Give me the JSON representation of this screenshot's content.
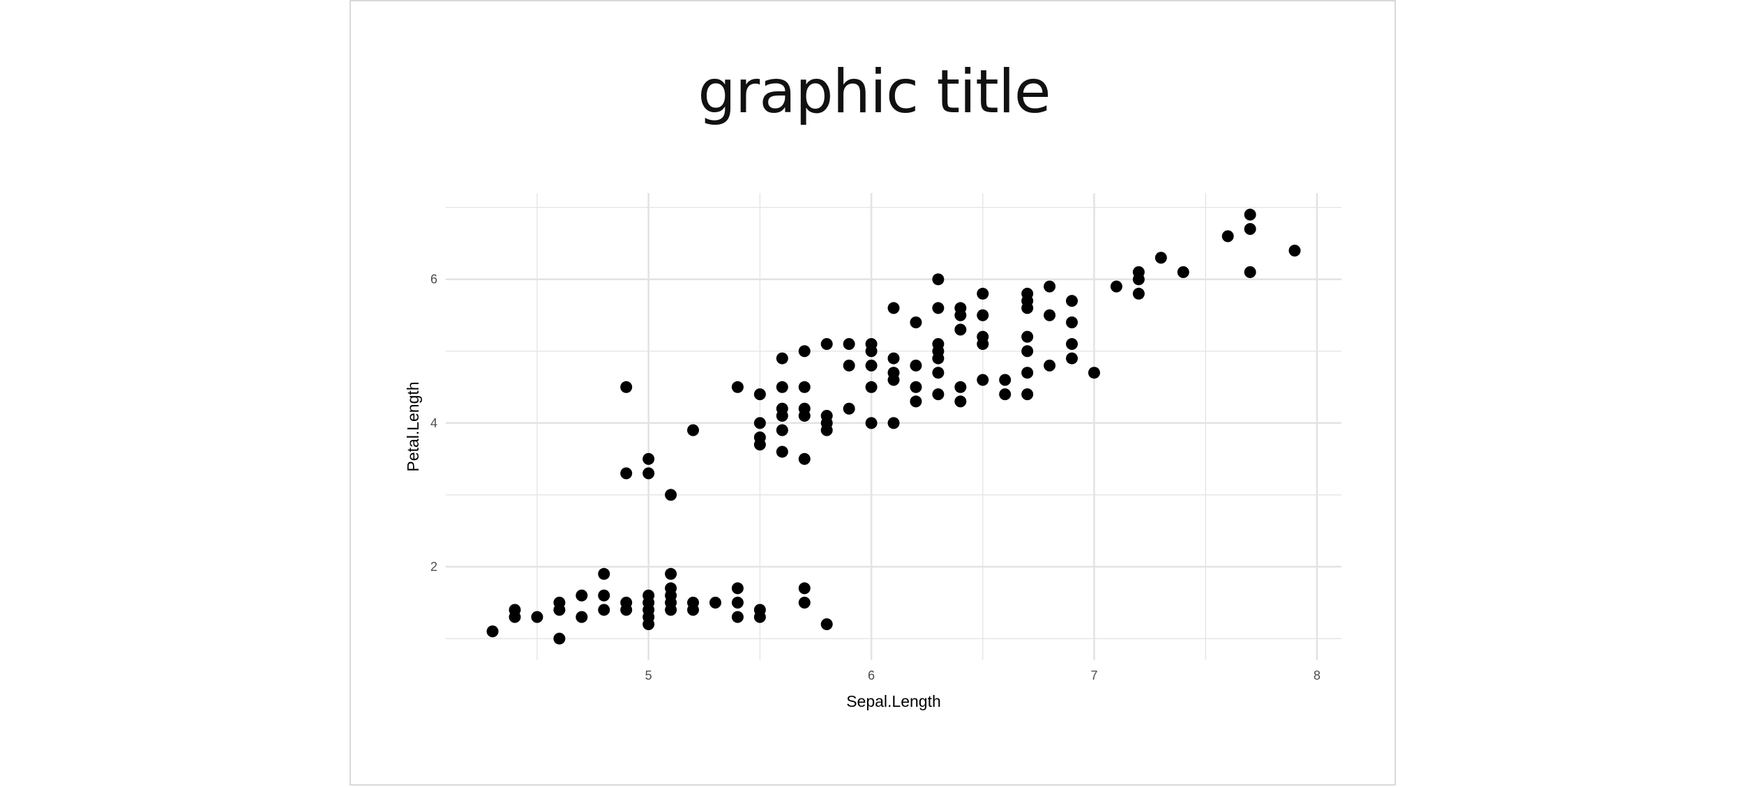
{
  "chart_data": {
    "type": "scatter",
    "title": "graphic title",
    "xlabel": "Sepal.Length",
    "ylabel": "Petal.Length",
    "xlim": [
      4.09,
      8.11
    ],
    "ylim": [
      0.7,
      7.2
    ],
    "x_ticks": [
      5,
      6,
      7,
      8
    ],
    "y_ticks": [
      2,
      4,
      6
    ],
    "x_minor": [
      4.5,
      5.5,
      6.5,
      7.5
    ],
    "y_minor": [
      1,
      3,
      5,
      7
    ],
    "grid": true,
    "legend": "none",
    "point_color": "#000000",
    "points": [
      [
        4.3,
        1.1
      ],
      [
        4.4,
        1.3
      ],
      [
        4.4,
        1.4
      ],
      [
        4.5,
        1.3
      ],
      [
        4.6,
        1.0
      ],
      [
        4.6,
        1.4
      ],
      [
        4.6,
        1.5
      ],
      [
        4.7,
        1.3
      ],
      [
        4.7,
        1.6
      ],
      [
        4.8,
        1.4
      ],
      [
        4.8,
        1.6
      ],
      [
        4.8,
        1.9
      ],
      [
        4.9,
        1.4
      ],
      [
        4.9,
        1.5
      ],
      [
        4.9,
        3.3
      ],
      [
        4.9,
        4.5
      ],
      [
        5.0,
        1.2
      ],
      [
        5.0,
        1.3
      ],
      [
        5.0,
        1.4
      ],
      [
        5.0,
        1.5
      ],
      [
        5.0,
        1.6
      ],
      [
        5.0,
        3.3
      ],
      [
        5.0,
        3.5
      ],
      [
        5.1,
        1.4
      ],
      [
        5.1,
        1.5
      ],
      [
        5.1,
        1.6
      ],
      [
        5.1,
        1.7
      ],
      [
        5.1,
        1.9
      ],
      [
        5.1,
        3.0
      ],
      [
        5.2,
        1.4
      ],
      [
        5.2,
        1.5
      ],
      [
        5.2,
        3.9
      ],
      [
        5.3,
        1.5
      ],
      [
        5.4,
        1.3
      ],
      [
        5.4,
        1.5
      ],
      [
        5.4,
        1.7
      ],
      [
        5.4,
        4.5
      ],
      [
        5.5,
        1.3
      ],
      [
        5.5,
        1.4
      ],
      [
        5.5,
        3.7
      ],
      [
        5.5,
        3.8
      ],
      [
        5.5,
        4.0
      ],
      [
        5.5,
        4.4
      ],
      [
        5.6,
        3.6
      ],
      [
        5.6,
        3.9
      ],
      [
        5.6,
        4.1
      ],
      [
        5.6,
        4.2
      ],
      [
        5.6,
        4.5
      ],
      [
        5.6,
        4.9
      ],
      [
        5.7,
        1.5
      ],
      [
        5.7,
        1.7
      ],
      [
        5.7,
        3.5
      ],
      [
        5.7,
        4.1
      ],
      [
        5.7,
        4.2
      ],
      [
        5.7,
        4.5
      ],
      [
        5.7,
        5.0
      ],
      [
        5.8,
        1.2
      ],
      [
        5.8,
        3.9
      ],
      [
        5.8,
        4.0
      ],
      [
        5.8,
        4.1
      ],
      [
        5.8,
        5.1
      ],
      [
        5.9,
        4.2
      ],
      [
        5.9,
        4.8
      ],
      [
        5.9,
        5.1
      ],
      [
        6.0,
        4.0
      ],
      [
        6.0,
        4.5
      ],
      [
        6.0,
        4.8
      ],
      [
        6.0,
        5.0
      ],
      [
        6.0,
        5.1
      ],
      [
        6.1,
        4.0
      ],
      [
        6.1,
        4.6
      ],
      [
        6.1,
        4.7
      ],
      [
        6.1,
        4.9
      ],
      [
        6.1,
        5.6
      ],
      [
        6.2,
        4.3
      ],
      [
        6.2,
        4.5
      ],
      [
        6.2,
        4.8
      ],
      [
        6.2,
        5.4
      ],
      [
        6.3,
        4.4
      ],
      [
        6.3,
        4.7
      ],
      [
        6.3,
        4.9
      ],
      [
        6.3,
        5.0
      ],
      [
        6.3,
        5.1
      ],
      [
        6.3,
        5.6
      ],
      [
        6.3,
        6.0
      ],
      [
        6.4,
        4.3
      ],
      [
        6.4,
        4.5
      ],
      [
        6.4,
        5.3
      ],
      [
        6.4,
        5.5
      ],
      [
        6.4,
        5.6
      ],
      [
        6.5,
        4.6
      ],
      [
        6.5,
        5.1
      ],
      [
        6.5,
        5.2
      ],
      [
        6.5,
        5.5
      ],
      [
        6.5,
        5.8
      ],
      [
        6.6,
        4.4
      ],
      [
        6.6,
        4.6
      ],
      [
        6.7,
        4.4
      ],
      [
        6.7,
        4.7
      ],
      [
        6.7,
        5.0
      ],
      [
        6.7,
        5.2
      ],
      [
        6.7,
        5.6
      ],
      [
        6.7,
        5.7
      ],
      [
        6.7,
        5.8
      ],
      [
        6.8,
        4.8
      ],
      [
        6.8,
        5.5
      ],
      [
        6.8,
        5.9
      ],
      [
        6.9,
        4.9
      ],
      [
        6.9,
        5.1
      ],
      [
        6.9,
        5.4
      ],
      [
        6.9,
        5.7
      ],
      [
        7.0,
        4.7
      ],
      [
        7.1,
        5.9
      ],
      [
        7.2,
        5.8
      ],
      [
        7.2,
        6.0
      ],
      [
        7.2,
        6.1
      ],
      [
        7.3,
        6.3
      ],
      [
        7.4,
        6.1
      ],
      [
        7.6,
        6.6
      ],
      [
        7.7,
        6.1
      ],
      [
        7.7,
        6.7
      ],
      [
        7.7,
        6.9
      ],
      [
        7.9,
        6.4
      ]
    ]
  }
}
